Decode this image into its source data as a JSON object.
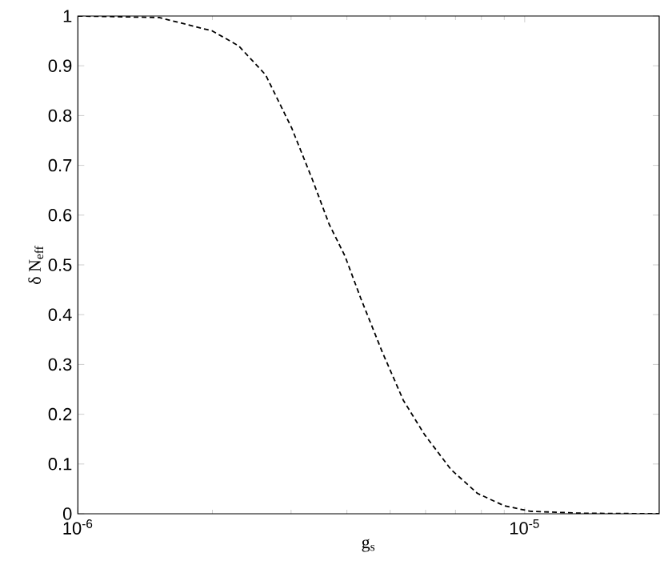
{
  "chart_data": {
    "type": "line",
    "xlabel": "g$_{s}$",
    "ylabel": "δ N$_{eff}$",
    "log": "x",
    "grid": false,
    "marker": "none",
    "line_style": "dashed",
    "xlim": [
      1e-06,
      2e-05
    ],
    "ylim": [
      0,
      1
    ],
    "xticks": [
      {
        "value": 1e-06,
        "label": "10$^{-6}$"
      },
      {
        "value": 1e-05,
        "label": "10$^{-5}$"
      }
    ],
    "yticks": [
      0,
      0.1,
      0.2,
      0.3,
      0.4,
      0.5,
      0.6,
      0.7,
      0.8,
      0.9,
      1
    ],
    "series": [
      {
        "color": "#000000",
        "x": [
          1e-06,
          1.52e-06,
          2e-06,
          2.29e-06,
          2.63e-06,
          3.01e-06,
          3.36e-06,
          3.65e-06,
          3.96e-06,
          4.3e-06,
          4.8e-06,
          5.35e-06,
          5.97e-06,
          6.84e-06,
          7.84e-06,
          9e-06,
          1.03e-05,
          1.35e-05,
          2e-05
        ],
        "values": [
          1,
          0.997,
          0.97,
          0.94,
          0.882,
          0.775,
          0.668,
          0.582,
          0.518,
          0.432,
          0.325,
          0.228,
          0.159,
          0.089,
          0.041,
          0.016,
          0.005,
          0.001,
          0
        ]
      }
    ]
  }
}
